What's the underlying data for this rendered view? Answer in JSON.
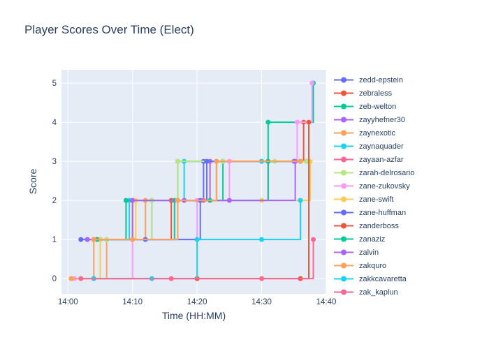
{
  "title": "Player Scores Over Time (Elect)",
  "axes": {
    "x_title": "Time (HH:MM)",
    "y_title": "Score"
  },
  "colors": {
    "text": "#2a3f5f",
    "plot_background": "#E5ECF6",
    "gridline": "#ffffff",
    "page_background": "#ffffff"
  },
  "chart_data": {
    "type": "line",
    "line_shape": "hv",
    "markers": true,
    "title": "Player Scores Over Time (Elect)",
    "xlabel": "Time (HH:MM)",
    "ylabel": "Score",
    "x_tick_labels": [
      "14:00",
      "14:10",
      "14:20",
      "14:30",
      "14:40"
    ],
    "x_tick_minutes": [
      0,
      10,
      20,
      30,
      40
    ],
    "y_tick_labels": [
      "0",
      "1",
      "2",
      "3",
      "4",
      "5"
    ],
    "y_ticks": [
      0,
      1,
      2,
      3,
      4,
      5
    ],
    "x_range_minutes": [
      -1,
      40
    ],
    "y_range": [
      -0.39,
      5.34
    ],
    "grid": true,
    "legend_position": "right",
    "series": [
      {
        "name": "zedd-epstein",
        "color": "#636EFA",
        "points": [
          [
            3,
            1
          ],
          [
            13,
            2
          ],
          [
            21,
            3
          ],
          [
            31,
            3
          ],
          [
            37,
            3
          ]
        ]
      },
      {
        "name": "zebraless",
        "color": "#EF553B",
        "points": [
          [
            4,
            1
          ],
          [
            16,
            2
          ],
          [
            17,
            3
          ],
          [
            30,
            3
          ],
          [
            36.5,
            4
          ]
        ]
      },
      {
        "name": "zeb-welton",
        "color": "#00CC96",
        "points": [
          [
            5,
            1
          ],
          [
            16.5,
            2
          ],
          [
            24,
            3
          ],
          [
            31,
            4
          ],
          [
            38,
            5
          ]
        ]
      },
      {
        "name": "zayyhefner30",
        "color": "#AB63FA",
        "points": [
          [
            4.5,
            1
          ],
          [
            9,
            2
          ],
          [
            22,
            3
          ],
          [
            35,
            3
          ]
        ]
      },
      {
        "name": "zaynexotic",
        "color": "#FFA15A",
        "points": [
          [
            0.5,
            0
          ],
          [
            6,
            1
          ],
          [
            12,
            2
          ],
          [
            17,
            2
          ],
          [
            23,
            3
          ],
          [
            31,
            3
          ],
          [
            36,
            3
          ]
        ]
      },
      {
        "name": "zaynaquader",
        "color": "#19D3F3",
        "points": [
          [
            5,
            1
          ],
          [
            9.5,
            2
          ],
          [
            18,
            3
          ],
          [
            30,
            3
          ],
          [
            36,
            3
          ]
        ]
      },
      {
        "name": "zayaan-azfar",
        "color": "#FF6692",
        "points": [
          [
            4,
            1
          ],
          [
            10,
            2
          ],
          [
            21,
            2
          ],
          [
            31,
            3
          ],
          [
            37,
            3
          ]
        ]
      },
      {
        "name": "zarah-delrosario",
        "color": "#B6E880",
        "points": [
          [
            6,
            1
          ],
          [
            13,
            2
          ],
          [
            17,
            3
          ],
          [
            24,
            3
          ],
          [
            32,
            3
          ],
          [
            37,
            3
          ]
        ]
      },
      {
        "name": "zane-zukovsky",
        "color": "#FF97FF",
        "points": [
          [
            1,
            0
          ],
          [
            10,
            1
          ],
          [
            20,
            2
          ],
          [
            25,
            3
          ],
          [
            35.5,
            4
          ],
          [
            37.8,
            5
          ]
        ]
      },
      {
        "name": "zane-swift",
        "color": "#FECB52",
        "points": [
          [
            0.5,
            0
          ],
          [
            5,
            1
          ],
          [
            10.5,
            2
          ],
          [
            30,
            2
          ],
          [
            37.5,
            3
          ]
        ]
      },
      {
        "name": "zane-huffman",
        "color": "#636EFA",
        "points": [
          [
            2,
            1
          ],
          [
            12,
            1
          ],
          [
            20.5,
            2
          ],
          [
            21.5,
            3
          ],
          [
            36,
            3
          ]
        ]
      },
      {
        "name": "zanderboss",
        "color": "#EF553B",
        "points": [
          [
            4,
            0
          ],
          [
            20,
            0
          ],
          [
            36,
            0
          ],
          [
            37.3,
            4
          ]
        ]
      },
      {
        "name": "zanaziz",
        "color": "#00CC96",
        "points": [
          [
            4.5,
            1
          ],
          [
            9,
            2
          ],
          [
            22,
            2
          ],
          [
            31,
            3
          ],
          [
            36,
            3
          ]
        ]
      },
      {
        "name": "zalvin",
        "color": "#AB63FA",
        "points": [
          [
            3,
            1
          ],
          [
            10,
            2
          ],
          [
            18,
            2
          ],
          [
            25,
            2
          ],
          [
            35.2,
            3
          ]
        ]
      },
      {
        "name": "zakquro",
        "color": "#FFA15A",
        "points": [
          [
            0.5,
            0
          ],
          [
            4,
            1
          ],
          [
            10,
            1
          ],
          [
            17,
            2
          ],
          [
            23,
            3
          ],
          [
            36,
            3
          ]
        ]
      },
      {
        "name": "zakkcavaretta",
        "color": "#19D3F3",
        "points": [
          [
            4,
            0
          ],
          [
            13,
            0
          ],
          [
            20,
            1
          ],
          [
            30,
            1
          ],
          [
            36,
            2
          ]
        ]
      },
      {
        "name": "zak_kaplun",
        "color": "#FF6692",
        "points": [
          [
            2,
            0
          ],
          [
            16,
            0
          ],
          [
            30,
            0
          ],
          [
            38,
            1
          ]
        ]
      }
    ]
  }
}
